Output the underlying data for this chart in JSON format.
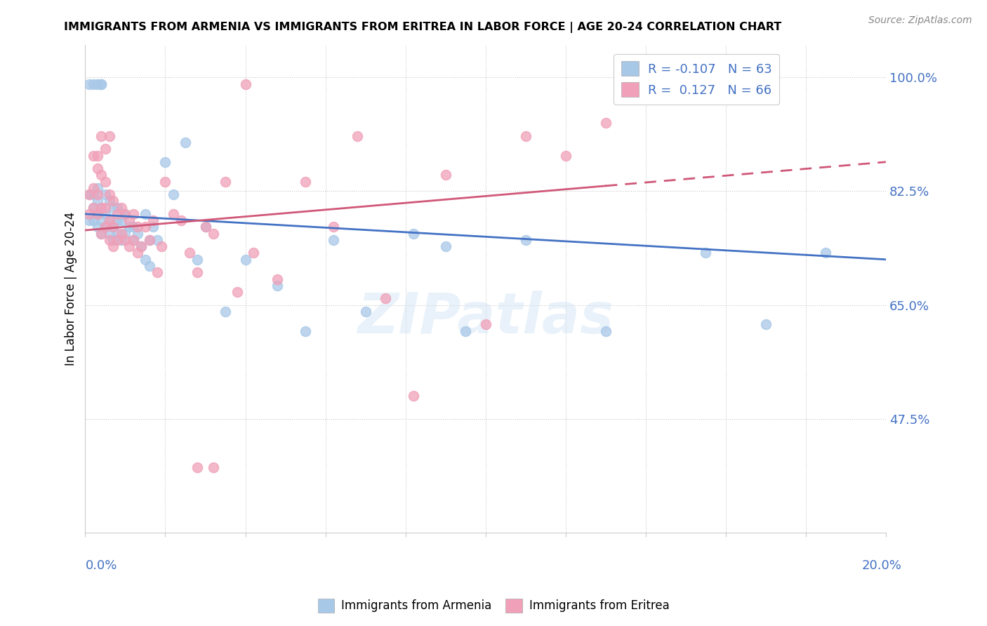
{
  "title": "IMMIGRANTS FROM ARMENIA VS IMMIGRANTS FROM ERITREA IN LABOR FORCE | AGE 20-24 CORRELATION CHART",
  "source": "Source: ZipAtlas.com",
  "ylabel": "In Labor Force | Age 20-24",
  "legend_armenia": {
    "R": "-0.107",
    "N": "63"
  },
  "legend_eritrea": {
    "R": "0.127",
    "N": "66"
  },
  "armenia_color": "#a8c8e8",
  "eritrea_color": "#f0a0b8",
  "armenia_line_color": "#4472c4",
  "eritrea_line_color": "#d05878",
  "watermark": "ZIPatlas",
  "xlim": [
    0.0,
    0.2
  ],
  "ylim": [
    0.3,
    1.05
  ],
  "ytick_vals": [
    1.0,
    0.825,
    0.65,
    0.475
  ],
  "ytick_labels": [
    "100.0%",
    "82.5%",
    "65.0%",
    "47.5%"
  ],
  "armenia_scatter_x": [
    0.001,
    0.001,
    0.001,
    0.002,
    0.002,
    0.002,
    0.003,
    0.003,
    0.003,
    0.003,
    0.004,
    0.004,
    0.004,
    0.004,
    0.005,
    0.005,
    0.005,
    0.006,
    0.006,
    0.006,
    0.007,
    0.007,
    0.007,
    0.008,
    0.008,
    0.008,
    0.009,
    0.009,
    0.01,
    0.01,
    0.011,
    0.012,
    0.012,
    0.013,
    0.014,
    0.015,
    0.015,
    0.016,
    0.016,
    0.017,
    0.018,
    0.02,
    0.022,
    0.025,
    0.028,
    0.03,
    0.035,
    0.04,
    0.048,
    0.055,
    0.062,
    0.07,
    0.082,
    0.095,
    0.11,
    0.13,
    0.155,
    0.17,
    0.185,
    0.002,
    0.003,
    0.004,
    0.09
  ],
  "armenia_scatter_y": [
    0.78,
    0.82,
    0.99,
    0.78,
    0.8,
    0.82,
    0.77,
    0.79,
    0.81,
    0.83,
    0.76,
    0.78,
    0.8,
    0.99,
    0.77,
    0.79,
    0.82,
    0.76,
    0.78,
    0.81,
    0.75,
    0.77,
    0.8,
    0.76,
    0.78,
    0.8,
    0.75,
    0.78,
    0.76,
    0.79,
    0.77,
    0.75,
    0.77,
    0.76,
    0.74,
    0.72,
    0.79,
    0.71,
    0.75,
    0.77,
    0.75,
    0.87,
    0.82,
    0.9,
    0.72,
    0.77,
    0.64,
    0.72,
    0.68,
    0.61,
    0.75,
    0.64,
    0.76,
    0.61,
    0.75,
    0.61,
    0.73,
    0.62,
    0.73,
    0.99,
    0.99,
    0.99,
    0.74
  ],
  "eritrea_scatter_x": [
    0.001,
    0.001,
    0.002,
    0.002,
    0.003,
    0.003,
    0.003,
    0.004,
    0.004,
    0.004,
    0.005,
    0.005,
    0.005,
    0.006,
    0.006,
    0.006,
    0.007,
    0.007,
    0.007,
    0.008,
    0.008,
    0.009,
    0.009,
    0.01,
    0.01,
    0.011,
    0.011,
    0.012,
    0.012,
    0.013,
    0.013,
    0.014,
    0.015,
    0.016,
    0.017,
    0.018,
    0.019,
    0.02,
    0.022,
    0.024,
    0.026,
    0.028,
    0.03,
    0.032,
    0.035,
    0.038,
    0.042,
    0.048,
    0.055,
    0.062,
    0.068,
    0.075,
    0.082,
    0.09,
    0.1,
    0.11,
    0.12,
    0.13,
    0.002,
    0.003,
    0.004,
    0.005,
    0.006,
    0.04,
    0.032,
    0.028
  ],
  "eritrea_scatter_y": [
    0.79,
    0.82,
    0.8,
    0.83,
    0.79,
    0.82,
    0.86,
    0.76,
    0.8,
    0.85,
    0.77,
    0.8,
    0.84,
    0.75,
    0.78,
    0.82,
    0.74,
    0.77,
    0.81,
    0.75,
    0.79,
    0.76,
    0.8,
    0.75,
    0.79,
    0.74,
    0.78,
    0.75,
    0.79,
    0.73,
    0.77,
    0.74,
    0.77,
    0.75,
    0.78,
    0.7,
    0.74,
    0.84,
    0.79,
    0.78,
    0.73,
    0.7,
    0.77,
    0.76,
    0.84,
    0.67,
    0.73,
    0.69,
    0.84,
    0.77,
    0.91,
    0.66,
    0.51,
    0.85,
    0.62,
    0.91,
    0.88,
    0.93,
    0.88,
    0.88,
    0.91,
    0.89,
    0.91,
    0.99,
    0.4,
    0.4
  ],
  "armenia_line_x": [
    0.0,
    0.2
  ],
  "armenia_line_y": [
    0.79,
    0.72
  ],
  "eritrea_line_x": [
    0.0,
    0.2
  ],
  "eritrea_line_y": [
    0.765,
    0.87
  ]
}
